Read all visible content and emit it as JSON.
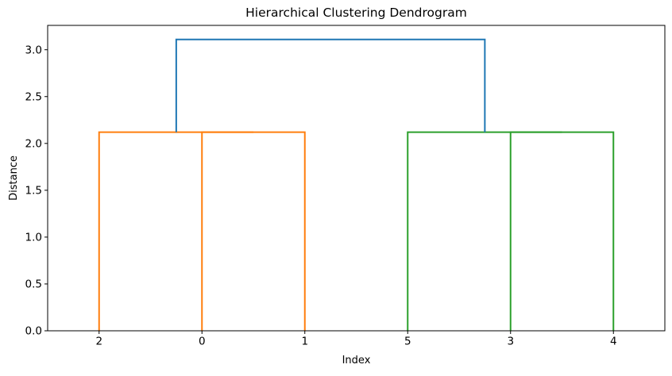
{
  "window": {
    "background": "#ffffff"
  },
  "chart_data": {
    "type": "dendrogram",
    "title": "Hierarchical Clustering Dendrogram",
    "xlabel": "Index",
    "ylabel": "Distance",
    "grid": false,
    "legend": "none",
    "axis_color": "#000000",
    "xlim": [
      0,
      60
    ],
    "ylim": [
      0,
      3.26
    ],
    "leaves": [
      {
        "label": "2",
        "x": 5
      },
      {
        "label": "0",
        "x": 15
      },
      {
        "label": "1",
        "x": 25
      },
      {
        "label": "5",
        "x": 35
      },
      {
        "label": "3",
        "x": 45
      },
      {
        "label": "4",
        "x": 55
      }
    ],
    "yticks": [
      {
        "label": "0.0",
        "value": 0.0
      },
      {
        "label": "0.5",
        "value": 0.5
      },
      {
        "label": "1.0",
        "value": 1.0
      },
      {
        "label": "1.5",
        "value": 1.5
      },
      {
        "label": "2.0",
        "value": 2.0
      },
      {
        "label": "2.5",
        "value": 2.5
      },
      {
        "label": "3.0",
        "value": 3.0
      }
    ],
    "colors": {
      "cluster_left": "#ff7f0e",
      "cluster_right": "#2ca02c",
      "root": "#1f77b4"
    },
    "merges": [
      {
        "pair": "(0,1)",
        "height": 2.12
      },
      {
        "pair": "(2,(0,1))",
        "height": 2.12
      },
      {
        "pair": "(3,4)",
        "height": 2.12
      },
      {
        "pair": "(5,(3,4))",
        "height": 2.12
      },
      {
        "pair": "root",
        "height": 3.11
      }
    ],
    "links": [
      {
        "cluster": "orange",
        "color": "#ff7f0e",
        "x1": 15,
        "base1": 0,
        "x2": 25,
        "base2": 0,
        "height": 2.12
      },
      {
        "cluster": "orange",
        "color": "#ff7f0e",
        "x1": 5,
        "base1": 0,
        "x2": 20,
        "base2": 2.12,
        "height": 2.12
      },
      {
        "cluster": "green",
        "color": "#2ca02c",
        "x1": 45,
        "base1": 0,
        "x2": 55,
        "base2": 0,
        "height": 2.12
      },
      {
        "cluster": "green",
        "color": "#2ca02c",
        "x1": 35,
        "base1": 0,
        "x2": 50,
        "base2": 2.12,
        "height": 2.12
      },
      {
        "cluster": "root",
        "color": "#1f77b4",
        "x1": 12.5,
        "base1": 2.12,
        "x2": 42.5,
        "base2": 2.12,
        "height": 3.11
      }
    ]
  }
}
